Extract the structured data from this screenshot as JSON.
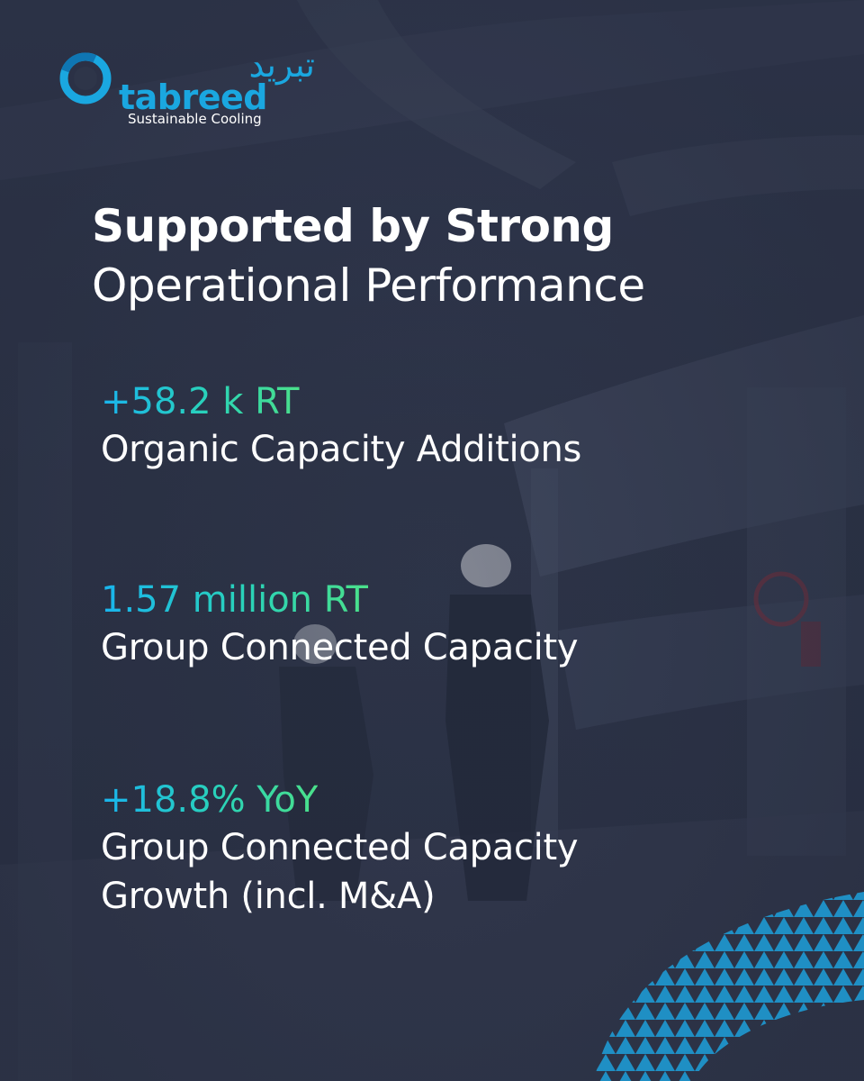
{
  "brand": {
    "arabic_name": "تبريد",
    "name": "tabreed",
    "tagline": "Sustainable Cooling",
    "color": "#1aa7e0"
  },
  "headline": {
    "line1": "Supported by Strong",
    "line2": "Operational Performance"
  },
  "stats": [
    {
      "value": "+58.2 k RT",
      "label": "Organic Capacity Additions"
    },
    {
      "value": "1.57 million RT",
      "label": "Group Connected Capacity"
    },
    {
      "value": "+18.8% YoY",
      "label_line1": "Group Connected Capacity",
      "label_line2": "Growth (incl. M&A)"
    }
  ],
  "colors": {
    "background": "#2e3549",
    "text": "#ffffff",
    "accent_gradient_start": "#19b4ee",
    "accent_gradient_end": "#4be08a",
    "pattern": "#1f8fc4"
  }
}
